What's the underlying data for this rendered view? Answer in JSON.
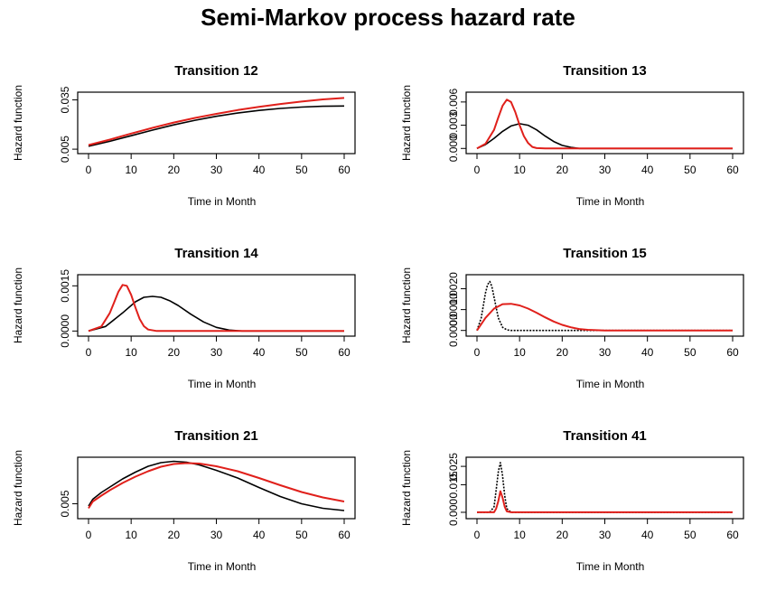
{
  "figure": {
    "title": "Semi-Markov process hazard rate"
  },
  "colors": {
    "series_black": "#000000",
    "series_red": "#e0201b"
  },
  "chart_data": [
    {
      "type": "line",
      "title": "Transition 12",
      "xlabel": "Time in Month",
      "ylabel": "Hazard function",
      "xlim": [
        0,
        60
      ],
      "ylim": [
        0.0045,
        0.0375
      ],
      "x_ticks": [
        0,
        10,
        20,
        30,
        40,
        50,
        60
      ],
      "y_ticks": [
        0.005,
        0.035
      ],
      "y_tick_labels": [
        "0.005",
        "0.035"
      ],
      "series": [
        {
          "color": "#000000",
          "x": [
            0,
            5,
            10,
            15,
            20,
            25,
            30,
            35,
            40,
            45,
            50,
            55,
            60
          ],
          "y": [
            0.0068,
            0.0098,
            0.0132,
            0.0166,
            0.0198,
            0.0226,
            0.025,
            0.027,
            0.0286,
            0.0298,
            0.0306,
            0.0311,
            0.0313
          ]
        },
        {
          "color": "#e0201b",
          "x": [
            0,
            5,
            10,
            15,
            20,
            25,
            30,
            35,
            40,
            45,
            50,
            55,
            60
          ],
          "y": [
            0.0075,
            0.0108,
            0.0145,
            0.018,
            0.0212,
            0.024,
            0.0265,
            0.0288,
            0.0308,
            0.0325,
            0.034,
            0.0353,
            0.0362
          ]
        }
      ]
    },
    {
      "type": "line",
      "title": "Transition 13",
      "xlabel": "Time in Month",
      "ylabel": "Hazard function",
      "xlim": [
        0,
        60
      ],
      "ylim": [
        -0.0002,
        0.0068
      ],
      "x_ticks": [
        0,
        10,
        20,
        30,
        40,
        50,
        60
      ],
      "y_ticks": [
        0.0,
        0.003,
        0.006
      ],
      "y_tick_labels": [
        "0.000",
        "0.003",
        "0.006"
      ],
      "series": [
        {
          "color": "#000000",
          "x": [
            0,
            2,
            4,
            6,
            8,
            10,
            12,
            14,
            16,
            18,
            20,
            22,
            24,
            30,
            40,
            50,
            60
          ],
          "y": [
            0.0,
            0.0005,
            0.0013,
            0.0022,
            0.0029,
            0.0032,
            0.003,
            0.0024,
            0.0016,
            0.0009,
            0.0004,
            0.00015,
            0.0,
            0.0,
            0.0,
            0.0,
            0.0
          ]
        },
        {
          "color": "#e0201b",
          "x": [
            0,
            2,
            4,
            5,
            6,
            7,
            8,
            9,
            10,
            11,
            12,
            13,
            14,
            16,
            20,
            30,
            40,
            50,
            60
          ],
          "y": [
            0.0,
            0.0006,
            0.0024,
            0.004,
            0.0055,
            0.0063,
            0.006,
            0.0047,
            0.003,
            0.0016,
            0.0007,
            0.0002,
            5e-05,
            0.0,
            0.0,
            0.0,
            0.0,
            0.0,
            0.0
          ]
        }
      ]
    },
    {
      "type": "line",
      "title": "Transition 14",
      "xlabel": "Time in Month",
      "ylabel": "Hazard function",
      "xlim": [
        0,
        60
      ],
      "ylim": [
        -5e-05,
        0.00175
      ],
      "x_ticks": [
        0,
        10,
        20,
        30,
        40,
        50,
        60
      ],
      "y_ticks": [
        0.0,
        0.0015
      ],
      "y_tick_labels": [
        "0.0000",
        "0.0015"
      ],
      "series": [
        {
          "color": "#000000",
          "x": [
            0,
            4,
            8,
            11,
            13,
            15,
            17,
            19,
            21,
            24,
            27,
            30,
            33,
            36,
            40,
            50,
            60
          ],
          "y": [
            0.0,
            0.00015,
            0.0006,
            0.00097,
            0.00112,
            0.00115,
            0.00112,
            0.00101,
            0.00085,
            0.00056,
            0.0003,
            0.00012,
            3e-05,
            0.0,
            0.0,
            0.0,
            0.0
          ]
        },
        {
          "color": "#e0201b",
          "x": [
            0,
            3,
            5,
            6,
            7,
            8,
            9,
            10,
            11,
            12,
            13,
            14,
            16,
            20,
            30,
            40,
            50,
            60
          ],
          "y": [
            0.0,
            0.00015,
            0.0006,
            0.00095,
            0.0013,
            0.00153,
            0.0015,
            0.0012,
            0.00078,
            0.0004,
            0.00016,
            5e-05,
            0.0,
            0.0,
            0.0,
            0.0,
            0.0,
            0.0
          ]
        }
      ]
    },
    {
      "type": "line",
      "title": "Transition 15",
      "xlabel": "Time in Month",
      "ylabel": "Hazard function",
      "xlim": [
        0,
        60
      ],
      "ylim": [
        -0.0001,
        0.0025
      ],
      "x_ticks": [
        0,
        10,
        20,
        30,
        40,
        50,
        60
      ],
      "y_ticks": [
        0.0,
        0.001,
        0.002
      ],
      "y_tick_labels": [
        "0.0000",
        "0.0010",
        "0.0020"
      ],
      "series": [
        {
          "color": "#000000",
          "dashed": true,
          "x": [
            0,
            1,
            2,
            2.5,
            3,
            3.5,
            4,
            5,
            6,
            7,
            8,
            10,
            60
          ],
          "y": [
            0.0,
            0.0006,
            0.0018,
            0.0022,
            0.00235,
            0.0021,
            0.0016,
            0.0006,
            0.00015,
            3e-05,
            0.0,
            0.0,
            0.0
          ]
        },
        {
          "color": "#e0201b",
          "x": [
            0,
            2,
            4,
            6,
            8,
            10,
            12,
            14,
            16,
            18,
            20,
            22,
            24,
            26,
            30,
            40,
            50,
            60
          ],
          "y": [
            0.0,
            0.0006,
            0.00105,
            0.00126,
            0.00128,
            0.0012,
            0.00105,
            0.00085,
            0.00063,
            0.00043,
            0.00027,
            0.00015,
            7e-05,
            3e-05,
            0.0,
            0.0,
            0.0,
            0.0
          ]
        }
      ]
    },
    {
      "type": "line",
      "title": "Transition 21",
      "xlabel": "Time in Month",
      "ylabel": "Hazard function",
      "xlim": [
        0,
        60
      ],
      "ylim": [
        0.0025,
        0.0145
      ],
      "x_ticks": [
        0,
        10,
        20,
        30,
        40,
        50,
        60
      ],
      "y_ticks": [
        0.005
      ],
      "y_tick_labels": [
        "0.005"
      ],
      "series": [
        {
          "color": "#000000",
          "x": [
            0,
            1,
            3,
            5,
            8,
            11,
            14,
            17,
            20,
            23,
            26,
            30,
            35,
            40,
            45,
            50,
            55,
            60
          ],
          "y": [
            0.0045,
            0.006,
            0.0075,
            0.0087,
            0.0105,
            0.012,
            0.0133,
            0.0141,
            0.0144,
            0.0142,
            0.0136,
            0.0124,
            0.0107,
            0.0086,
            0.0066,
            0.005,
            0.004,
            0.0035
          ]
        },
        {
          "color": "#e0201b",
          "x": [
            0,
            1,
            3,
            5,
            8,
            11,
            14,
            17,
            20,
            23,
            26,
            30,
            35,
            40,
            45,
            50,
            55,
            60
          ],
          "y": [
            0.004,
            0.0055,
            0.0068,
            0.008,
            0.0096,
            0.011,
            0.0122,
            0.0132,
            0.0138,
            0.014,
            0.0139,
            0.0133,
            0.0122,
            0.0107,
            0.0091,
            0.0076,
            0.0064,
            0.0055
          ]
        }
      ]
    },
    {
      "type": "line",
      "title": "Transition 41",
      "xlabel": "Time in Month",
      "ylabel": "Hazard function",
      "xlim": [
        0,
        60
      ],
      "ylim": [
        -0.0015,
        0.028
      ],
      "x_ticks": [
        0,
        10,
        20,
        30,
        40,
        50,
        60
      ],
      "y_ticks": [
        0.0,
        0.015,
        0.025
      ],
      "y_tick_labels": [
        "0.000",
        "0.015",
        "0.025"
      ],
      "series": [
        {
          "color": "#000000",
          "dashed": true,
          "x": [
            0,
            3,
            4,
            4.5,
            5,
            5.5,
            6,
            6.5,
            7,
            8,
            60
          ],
          "y": [
            0.0,
            0.0,
            0.003,
            0.012,
            0.022,
            0.027,
            0.02,
            0.009,
            0.002,
            0.0,
            0.0
          ]
        },
        {
          "color": "#e0201b",
          "x": [
            0,
            4,
            4.5,
            5,
            5.5,
            6,
            6.5,
            7,
            8,
            60
          ],
          "y": [
            0.0,
            0.0,
            0.002,
            0.006,
            0.0115,
            0.008,
            0.003,
            0.0005,
            0.0,
            0.0
          ]
        }
      ]
    }
  ]
}
